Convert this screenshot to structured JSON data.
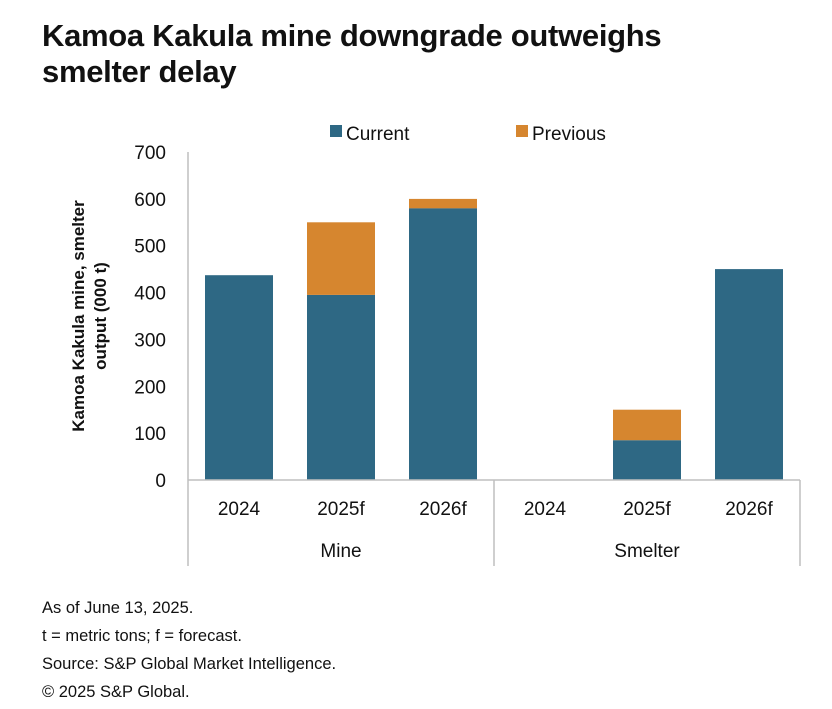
{
  "title": {
    "line1": "Kamoa Kakula mine downgrade outweighs",
    "line2": "smelter delay"
  },
  "colors": {
    "current": "#2e6884",
    "previous": "#d6862f",
    "axis": "#bfbfbf",
    "text": "#111111"
  },
  "chart_data": {
    "type": "bar",
    "stacked": true,
    "ylabel_lines": [
      "Kamoa Kakula mine, smelter",
      "output (000 t)"
    ],
    "xlabel": "",
    "ylim": [
      0,
      700
    ],
    "yticks": [
      0,
      100,
      200,
      300,
      400,
      500,
      600,
      700
    ],
    "grid": false,
    "legend_position": "top",
    "groups": [
      {
        "name": "Mine",
        "categories": [
          "2024",
          "2025f",
          "2026f"
        ]
      },
      {
        "name": "Smelter",
        "categories": [
          "2024",
          "2025f",
          "2026f"
        ]
      }
    ],
    "series": [
      {
        "name": "Current",
        "values": [
          437,
          395,
          580,
          0,
          85,
          450
        ]
      },
      {
        "name": "Previous",
        "values": [
          0,
          155,
          20,
          0,
          65,
          0
        ]
      }
    ]
  },
  "notes": [
    "As of June 13, 2025.",
    "t = metric tons; f = forecast.",
    "Source: S&P Global Market Intelligence.",
    "© 2025 S&P Global."
  ]
}
